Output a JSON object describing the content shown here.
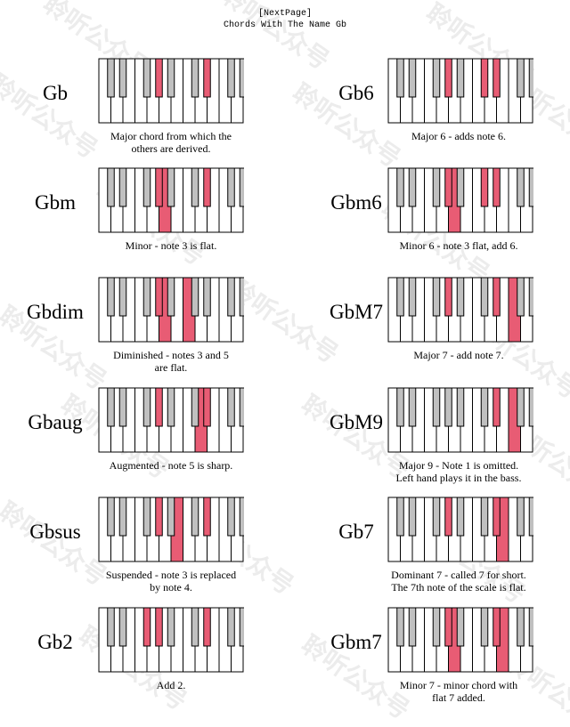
{
  "header": {
    "next_link": "[NextPage]",
    "title": "Chords With The Name Gb"
  },
  "colors": {
    "highlight": "#e85c74",
    "black_key": "#c0c0c0",
    "white_key": "#ffffff",
    "outline": "#000000"
  },
  "watermark": "聆听公众号",
  "chords": [
    {
      "name": "Gb",
      "desc": [
        "Major chord from which the",
        "others are derived."
      ],
      "white": [],
      "black": [
        3,
        6
      ]
    },
    {
      "name": "Gb6",
      "desc": [
        "Major 6 - adds note 6."
      ],
      "white": [],
      "black": [
        3,
        5,
        6
      ]
    },
    {
      "name": "Gbm",
      "desc": [
        "Minor - note 3 is flat."
      ],
      "white": [
        5
      ],
      "black": [
        3,
        6
      ]
    },
    {
      "name": "Gbm6",
      "desc": [
        "Minor 6 - note 3 flat, add 6."
      ],
      "white": [
        5
      ],
      "black": [
        3,
        5,
        6
      ]
    },
    {
      "name": "Gbdim",
      "desc": [
        "Diminished - notes 3 and 5",
        "are flat."
      ],
      "white": [
        5,
        7
      ],
      "black": [
        3
      ]
    },
    {
      "name": "GbM7",
      "desc": [
        "Major 7 - add note 7."
      ],
      "white": [
        10
      ],
      "black": [
        3,
        6
      ]
    },
    {
      "name": "Gbaug",
      "desc": [
        "Augmented - note 5 is sharp."
      ],
      "white": [
        8
      ],
      "black": [
        3,
        6
      ]
    },
    {
      "name": "GbM9",
      "desc": [
        "Major 9 - Note 1 is omitted.",
        "Left hand plays it in the bass."
      ],
      "white": [
        10
      ],
      "black": [
        6,
        9
      ]
    },
    {
      "name": "Gbsus",
      "desc": [
        "Suspended - note 3 is replaced",
        "by note 4."
      ],
      "white": [
        6
      ],
      "black": [
        3,
        6
      ]
    },
    {
      "name": "Gb7",
      "desc": [
        "Dominant 7 - called 7 for short.",
        "The 7th note of the scale is flat."
      ],
      "white": [
        9
      ],
      "black": [
        3,
        6
      ]
    },
    {
      "name": "Gb2",
      "desc": [
        "Add 2."
      ],
      "white": [],
      "black": [
        2,
        3,
        6
      ]
    },
    {
      "name": "Gbm7",
      "desc": [
        "Minor 7 - minor chord with",
        "flat 7 added."
      ],
      "white": [
        5,
        9
      ],
      "black": [
        3,
        6
      ]
    }
  ]
}
